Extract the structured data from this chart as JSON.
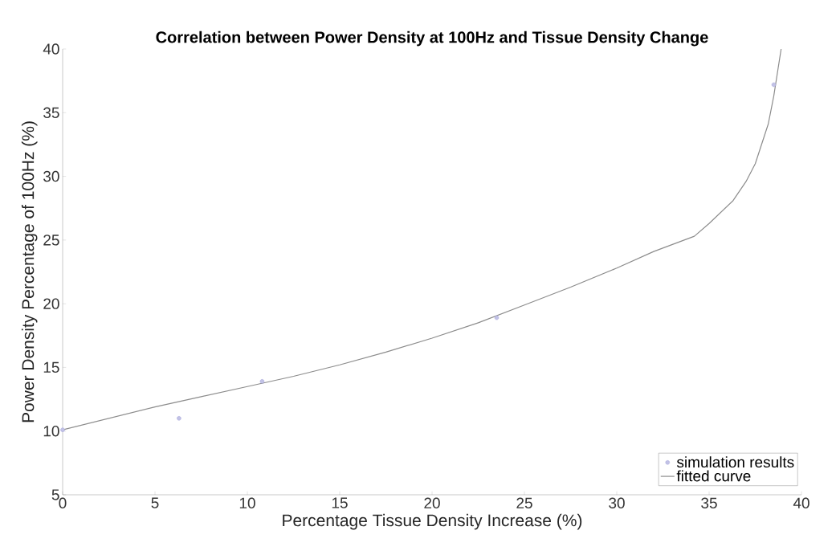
{
  "chart_data": {
    "type": "scatter",
    "title": "Correlation between Power Density at 100Hz and Tissue Density Change",
    "xlabel": "Percentage Tissue Density Increase (%)",
    "ylabel": "Power Density Percentage of 100Hz (%)",
    "xlim": [
      0,
      40
    ],
    "ylim": [
      5,
      40
    ],
    "xticks": [
      0,
      5,
      10,
      15,
      20,
      25,
      30,
      35,
      40
    ],
    "yticks": [
      5,
      10,
      15,
      20,
      25,
      30,
      35,
      40
    ],
    "grid": false,
    "legend": "bottom right",
    "series": [
      {
        "name": "simulation results",
        "marker": "circle",
        "color": "#9a9ad6",
        "x": [
          0,
          6.3,
          10.8,
          23.5,
          38.5
        ],
        "values": [
          10.1,
          11.0,
          13.9,
          18.9,
          37.2
        ]
      },
      {
        "name": "fitted curve",
        "type": "line",
        "marker": "none",
        "color": "#8c8c8c",
        "x": [
          0,
          2.5,
          5,
          7.5,
          10,
          12.5,
          15,
          17.5,
          20,
          22.5,
          25,
          27.5,
          30,
          32,
          34.2,
          35,
          36.3,
          37,
          37.5,
          38.2,
          38.5,
          38.9
        ],
        "values": [
          10.1,
          11.0,
          11.9,
          12.7,
          13.5,
          14.3,
          15.2,
          16.2,
          17.3,
          18.5,
          19.9,
          21.3,
          22.8,
          24.1,
          25.3,
          26.3,
          28.1,
          29.6,
          31.0,
          34.1,
          36.3,
          40
        ]
      }
    ]
  }
}
